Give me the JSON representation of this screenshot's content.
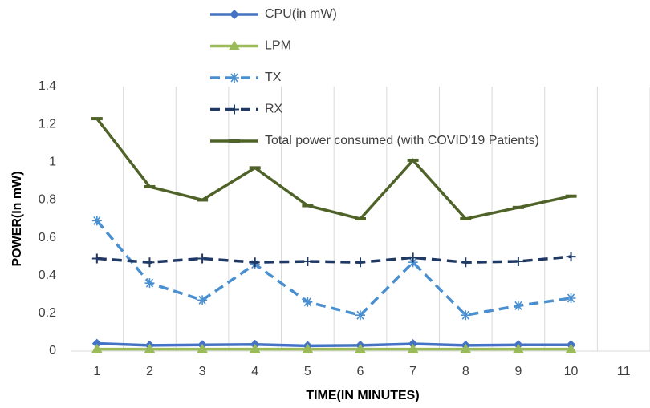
{
  "chart_data": {
    "type": "line",
    "x_label": "TIME(IN MINUTES)",
    "y_label": "POWER(In mW)",
    "categories": [
      "1",
      "2",
      "3",
      "4",
      "5",
      "6",
      "7",
      "8",
      "9",
      "10",
      "11"
    ],
    "ylim": [
      0,
      1.4
    ],
    "yticks": [
      0,
      0.2,
      0.4,
      0.6,
      0.8,
      1,
      1.2,
      1.4
    ],
    "grid": true,
    "legend": "top",
    "series": [
      {
        "name": "CPU(in mW)",
        "color": "#4472c4",
        "marker": "diamond",
        "dash": false,
        "values": [
          0.04,
          0.03,
          0.033,
          0.035,
          0.028,
          0.03,
          0.038,
          0.03,
          0.033,
          0.033,
          null
        ]
      },
      {
        "name": "LPM",
        "color": "#9bbb59",
        "marker": "triangle",
        "dash": false,
        "values": [
          0.01,
          0.01,
          0.01,
          0.01,
          0.01,
          0.01,
          0.01,
          0.01,
          0.01,
          0.01,
          null
        ]
      },
      {
        "name": "TX",
        "color": "#4a8fd0",
        "marker": "asterisk",
        "dash": true,
        "values": [
          0.69,
          0.36,
          0.27,
          0.46,
          0.26,
          0.19,
          0.47,
          0.19,
          0.24,
          0.28,
          null
        ]
      },
      {
        "name": "RX",
        "color": "#1f3864",
        "marker": "plus",
        "dash": true,
        "values": [
          0.49,
          0.47,
          0.49,
          0.47,
          0.475,
          0.47,
          0.495,
          0.47,
          0.475,
          0.5,
          null
        ]
      },
      {
        "name": "Total power consumed (with COVID'19 Patients)",
        "color": "#4f6228",
        "marker": "dash",
        "dash": false,
        "values": [
          1.23,
          0.87,
          0.8,
          0.97,
          0.77,
          0.7,
          1.01,
          0.7,
          0.76,
          0.82,
          null
        ]
      }
    ]
  }
}
